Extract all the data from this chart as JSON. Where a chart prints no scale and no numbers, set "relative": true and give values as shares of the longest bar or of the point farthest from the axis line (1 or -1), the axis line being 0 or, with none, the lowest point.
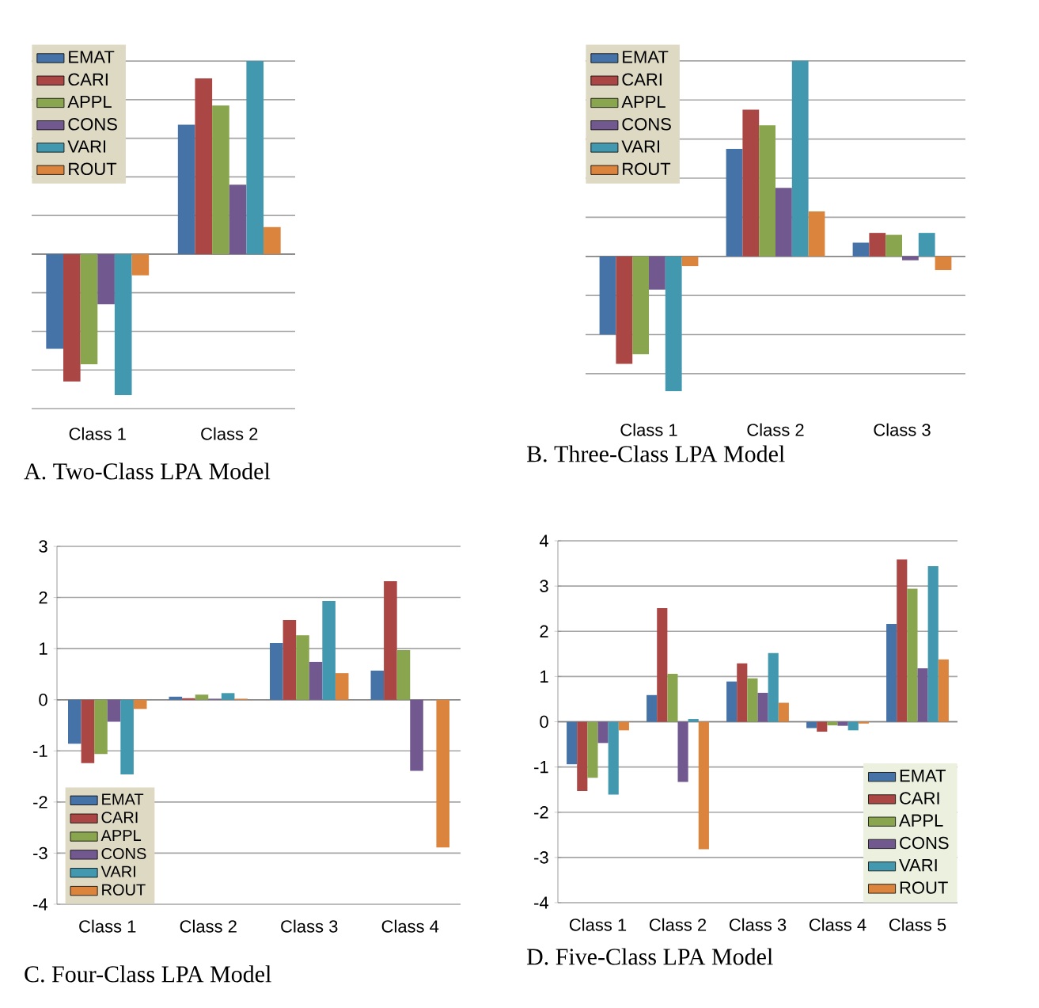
{
  "chart_data": [
    {
      "type": "bar",
      "title": "A.  Two-Class LPA Model",
      "relative": true,
      "tick_labels": "x",
      "grid": "y",
      "legend": "top left",
      "categories": [
        "Class 1",
        "Class 2"
      ],
      "series": [
        {
          "name": "EMAT",
          "color": "#4572a7",
          "values": [
            -0.49,
            0.67
          ]
        },
        {
          "name": "CARI",
          "color": "#aa4643",
          "values": [
            -0.66,
            0.91
          ]
        },
        {
          "name": "APPL",
          "color": "#89a54e",
          "values": [
            -0.57,
            0.77
          ]
        },
        {
          "name": "CONS",
          "color": "#71588f",
          "values": [
            -0.26,
            0.36
          ]
        },
        {
          "name": "VARI",
          "color": "#4198af",
          "values": [
            -0.73,
            1
          ]
        },
        {
          "name": "ROUT",
          "color": "#db843d",
          "values": [
            -0.11,
            0.14
          ]
        }
      ]
    },
    {
      "type": "bar",
      "title": "B.  Three-Class LPA Model",
      "relative": true,
      "tick_labels": "x",
      "grid": "y",
      "legend": "top left",
      "categories": [
        "Class 1",
        "Class 2",
        "Class 3"
      ],
      "series": [
        {
          "name": "EMAT",
          "color": "#4572a7",
          "values": [
            -0.4,
            0.55,
            0.07
          ]
        },
        {
          "name": "CARI",
          "color": "#aa4643",
          "values": [
            -0.55,
            0.75,
            0.12
          ]
        },
        {
          "name": "APPL",
          "color": "#89a54e",
          "values": [
            -0.5,
            0.67,
            0.11
          ]
        },
        {
          "name": "CONS",
          "color": "#71588f",
          "values": [
            -0.17,
            0.35,
            -0.02
          ]
        },
        {
          "name": "VARI",
          "color": "#4198af",
          "values": [
            -0.69,
            1,
            0.12
          ]
        },
        {
          "name": "ROUT",
          "color": "#db843d",
          "values": [
            -0.05,
            0.23,
            -0.07
          ]
        }
      ]
    },
    {
      "type": "bar",
      "title": "C.  Four-Class LPA Model",
      "ylim": [
        -4,
        3
      ],
      "yticks": [
        -4,
        -3,
        -2,
        -1,
        0,
        1,
        2,
        3
      ],
      "grid": "y",
      "legend": "bottom left",
      "categories": [
        "Class 1",
        "Class 2",
        "Class 3",
        "Class 4"
      ],
      "series": [
        {
          "name": "EMAT",
          "color": "#4572a7",
          "values": [
            -0.86,
            0.06,
            1.11,
            0.57
          ]
        },
        {
          "name": "CARI",
          "color": "#aa4643",
          "values": [
            -1.24,
            0.03,
            1.56,
            2.32
          ]
        },
        {
          "name": "APPL",
          "color": "#89a54e",
          "values": [
            -1.06,
            0.1,
            1.26,
            0.97
          ]
        },
        {
          "name": "CONS",
          "color": "#71588f",
          "values": [
            -0.43,
            0.02,
            0.74,
            -1.39
          ]
        },
        {
          "name": "VARI",
          "color": "#4198af",
          "values": [
            -1.46,
            0.13,
            1.93,
            null
          ]
        },
        {
          "name": "ROUT",
          "color": "#db843d",
          "values": [
            -0.18,
            0.02,
            0.52,
            -2.89
          ]
        }
      ]
    },
    {
      "type": "bar",
      "title": "D.  Five-Class LPA Model",
      "ylim": [
        -4,
        4
      ],
      "yticks": [
        -4,
        -3,
        -2,
        -1,
        0,
        1,
        2,
        3,
        4
      ],
      "grid": "y",
      "legend": "bottom right",
      "categories": [
        "Class 1",
        "Class 2",
        "Class 3",
        "Class 4",
        "Class 5"
      ],
      "series": [
        {
          "name": "EMAT",
          "color": "#4572a7",
          "values": [
            -0.94,
            0.59,
            0.89,
            -0.14,
            2.16
          ]
        },
        {
          "name": "CARI",
          "color": "#aa4643",
          "values": [
            -1.53,
            2.51,
            1.29,
            -0.22,
            3.59
          ]
        },
        {
          "name": "APPL",
          "color": "#89a54e",
          "values": [
            -1.24,
            1.06,
            0.96,
            -0.08,
            2.94
          ]
        },
        {
          "name": "CONS",
          "color": "#71588f",
          "values": [
            -0.47,
            -1.33,
            0.64,
            -0.09,
            1.18
          ]
        },
        {
          "name": "VARI",
          "color": "#4198af",
          "values": [
            -1.61,
            0.06,
            1.52,
            -0.19,
            3.44
          ]
        },
        {
          "name": "ROUT",
          "color": "#db843d",
          "values": [
            -0.19,
            -2.82,
            0.42,
            -0.04,
            1.38
          ]
        }
      ]
    }
  ]
}
